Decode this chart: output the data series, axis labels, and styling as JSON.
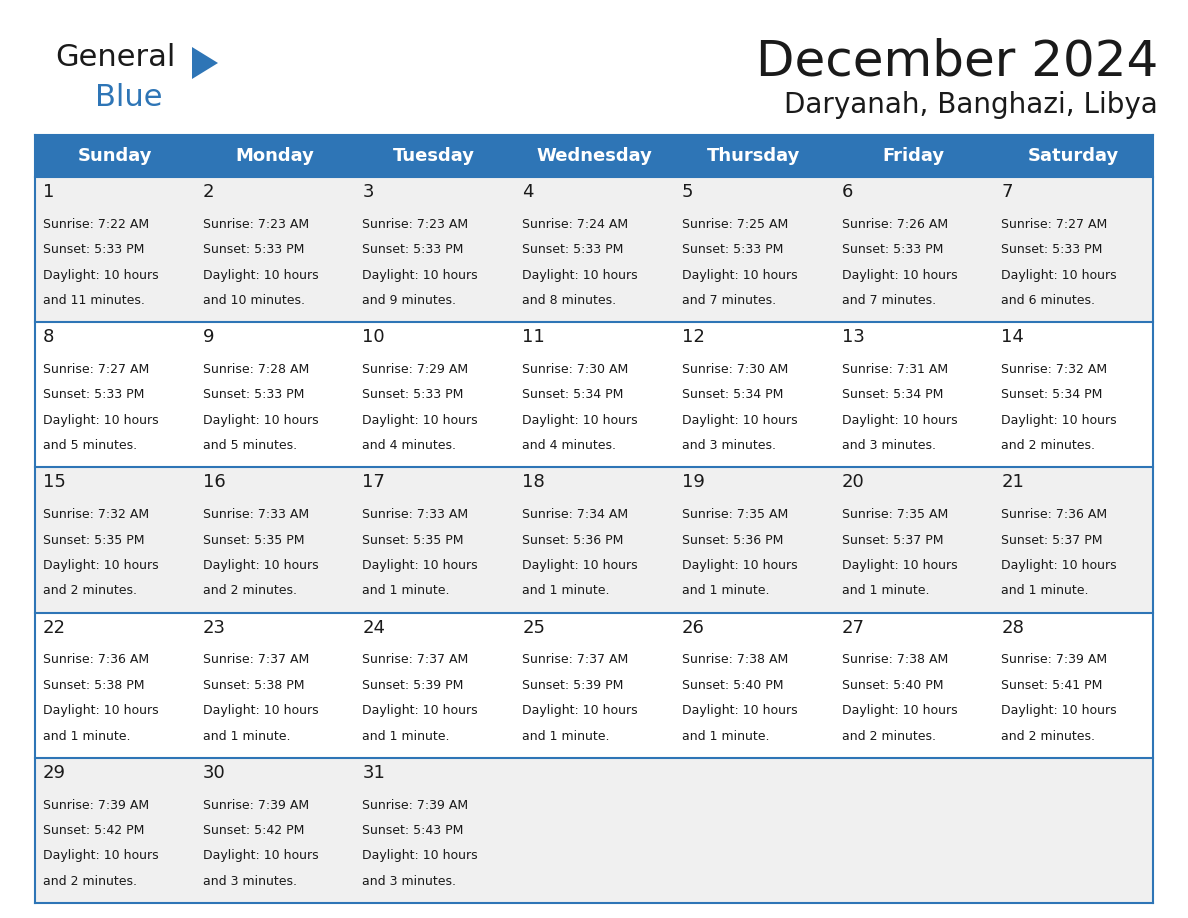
{
  "title": "December 2024",
  "subtitle": "Daryanah, Banghazi, Libya",
  "header_color": "#2e75b6",
  "header_text_color": "#ffffff",
  "cell_bg_even": "#f0f0f0",
  "cell_bg_odd": "#ffffff",
  "border_color": "#2e75b6",
  "day_headers": [
    "Sunday",
    "Monday",
    "Tuesday",
    "Wednesday",
    "Thursday",
    "Friday",
    "Saturday"
  ],
  "calendar_data": [
    [
      {
        "day": 1,
        "sunrise": "7:22 AM",
        "sunset": "5:33 PM",
        "daylight_hours": 10,
        "daylight_minutes": 11
      },
      {
        "day": 2,
        "sunrise": "7:23 AM",
        "sunset": "5:33 PM",
        "daylight_hours": 10,
        "daylight_minutes": 10
      },
      {
        "day": 3,
        "sunrise": "7:23 AM",
        "sunset": "5:33 PM",
        "daylight_hours": 10,
        "daylight_minutes": 9
      },
      {
        "day": 4,
        "sunrise": "7:24 AM",
        "sunset": "5:33 PM",
        "daylight_hours": 10,
        "daylight_minutes": 8
      },
      {
        "day": 5,
        "sunrise": "7:25 AM",
        "sunset": "5:33 PM",
        "daylight_hours": 10,
        "daylight_minutes": 7
      },
      {
        "day": 6,
        "sunrise": "7:26 AM",
        "sunset": "5:33 PM",
        "daylight_hours": 10,
        "daylight_minutes": 7
      },
      {
        "day": 7,
        "sunrise": "7:27 AM",
        "sunset": "5:33 PM",
        "daylight_hours": 10,
        "daylight_minutes": 6
      }
    ],
    [
      {
        "day": 8,
        "sunrise": "7:27 AM",
        "sunset": "5:33 PM",
        "daylight_hours": 10,
        "daylight_minutes": 5
      },
      {
        "day": 9,
        "sunrise": "7:28 AM",
        "sunset": "5:33 PM",
        "daylight_hours": 10,
        "daylight_minutes": 5
      },
      {
        "day": 10,
        "sunrise": "7:29 AM",
        "sunset": "5:33 PM",
        "daylight_hours": 10,
        "daylight_minutes": 4
      },
      {
        "day": 11,
        "sunrise": "7:30 AM",
        "sunset": "5:34 PM",
        "daylight_hours": 10,
        "daylight_minutes": 4
      },
      {
        "day": 12,
        "sunrise": "7:30 AM",
        "sunset": "5:34 PM",
        "daylight_hours": 10,
        "daylight_minutes": 3
      },
      {
        "day": 13,
        "sunrise": "7:31 AM",
        "sunset": "5:34 PM",
        "daylight_hours": 10,
        "daylight_minutes": 3
      },
      {
        "day": 14,
        "sunrise": "7:32 AM",
        "sunset": "5:34 PM",
        "daylight_hours": 10,
        "daylight_minutes": 2
      }
    ],
    [
      {
        "day": 15,
        "sunrise": "7:32 AM",
        "sunset": "5:35 PM",
        "daylight_hours": 10,
        "daylight_minutes": 2
      },
      {
        "day": 16,
        "sunrise": "7:33 AM",
        "sunset": "5:35 PM",
        "daylight_hours": 10,
        "daylight_minutes": 2
      },
      {
        "day": 17,
        "sunrise": "7:33 AM",
        "sunset": "5:35 PM",
        "daylight_hours": 10,
        "daylight_minutes": 1
      },
      {
        "day": 18,
        "sunrise": "7:34 AM",
        "sunset": "5:36 PM",
        "daylight_hours": 10,
        "daylight_minutes": 1
      },
      {
        "day": 19,
        "sunrise": "7:35 AM",
        "sunset": "5:36 PM",
        "daylight_hours": 10,
        "daylight_minutes": 1
      },
      {
        "day": 20,
        "sunrise": "7:35 AM",
        "sunset": "5:37 PM",
        "daylight_hours": 10,
        "daylight_minutes": 1
      },
      {
        "day": 21,
        "sunrise": "7:36 AM",
        "sunset": "5:37 PM",
        "daylight_hours": 10,
        "daylight_minutes": 1
      }
    ],
    [
      {
        "day": 22,
        "sunrise": "7:36 AM",
        "sunset": "5:38 PM",
        "daylight_hours": 10,
        "daylight_minutes": 1
      },
      {
        "day": 23,
        "sunrise": "7:37 AM",
        "sunset": "5:38 PM",
        "daylight_hours": 10,
        "daylight_minutes": 1
      },
      {
        "day": 24,
        "sunrise": "7:37 AM",
        "sunset": "5:39 PM",
        "daylight_hours": 10,
        "daylight_minutes": 1
      },
      {
        "day": 25,
        "sunrise": "7:37 AM",
        "sunset": "5:39 PM",
        "daylight_hours": 10,
        "daylight_minutes": 1
      },
      {
        "day": 26,
        "sunrise": "7:38 AM",
        "sunset": "5:40 PM",
        "daylight_hours": 10,
        "daylight_minutes": 1
      },
      {
        "day": 27,
        "sunrise": "7:38 AM",
        "sunset": "5:40 PM",
        "daylight_hours": 10,
        "daylight_minutes": 2
      },
      {
        "day": 28,
        "sunrise": "7:39 AM",
        "sunset": "5:41 PM",
        "daylight_hours": 10,
        "daylight_minutes": 2
      }
    ],
    [
      {
        "day": 29,
        "sunrise": "7:39 AM",
        "sunset": "5:42 PM",
        "daylight_hours": 10,
        "daylight_minutes": 2
      },
      {
        "day": 30,
        "sunrise": "7:39 AM",
        "sunset": "5:42 PM",
        "daylight_hours": 10,
        "daylight_minutes": 3
      },
      {
        "day": 31,
        "sunrise": "7:39 AM",
        "sunset": "5:43 PM",
        "daylight_hours": 10,
        "daylight_minutes": 3
      },
      null,
      null,
      null,
      null
    ]
  ],
  "logo_general_color": "#1a1a1a",
  "logo_blue_color": "#2e75b6",
  "title_fontsize": 36,
  "subtitle_fontsize": 20,
  "header_fontsize": 13,
  "day_num_fontsize": 13,
  "cell_text_fontsize": 9
}
